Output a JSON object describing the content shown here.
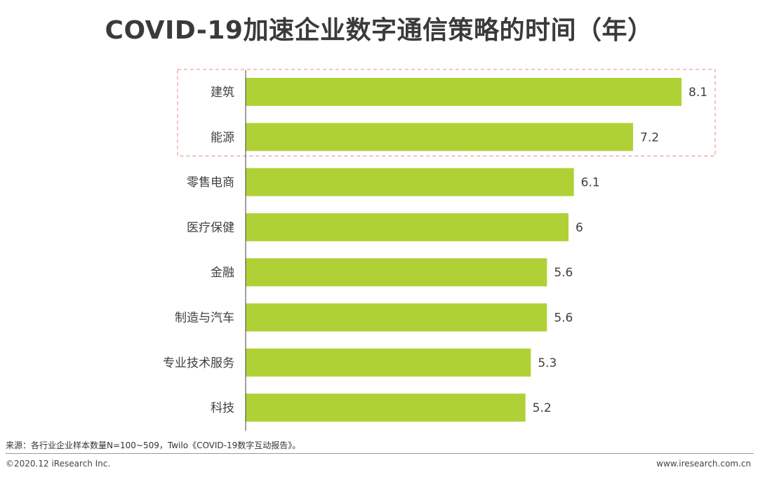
{
  "chart_data": {
    "type": "bar",
    "orientation": "horizontal",
    "title": "COVID-19加速企业数字通信策略的时间（年）",
    "categories": [
      "建筑",
      "能源",
      "零售电商",
      "医疗保健",
      "金融",
      "制造与汽车",
      "专业技术服务",
      "科技"
    ],
    "values": [
      8.1,
      7.2,
      6.1,
      6,
      5.6,
      5.6,
      5.3,
      5.2
    ],
    "value_labels": [
      "8.1",
      "7.2",
      "6.1",
      "6",
      "5.6",
      "5.6",
      "5.3",
      "5.2"
    ],
    "highlighted_categories": [
      "建筑",
      "能源"
    ],
    "bar_color": "#b0d136",
    "highlight_box_color": "#f4a0a0",
    "xlim": [
      0,
      8.1
    ],
    "grid": false,
    "legend": "none"
  },
  "footer": {
    "source": "来源：各行业企业样本数量N=100~509，Twilo《COVID-19数字互动报告》。",
    "copyright": "©2020.12 iResearch Inc.",
    "website": "www.iresearch.com.cn"
  }
}
